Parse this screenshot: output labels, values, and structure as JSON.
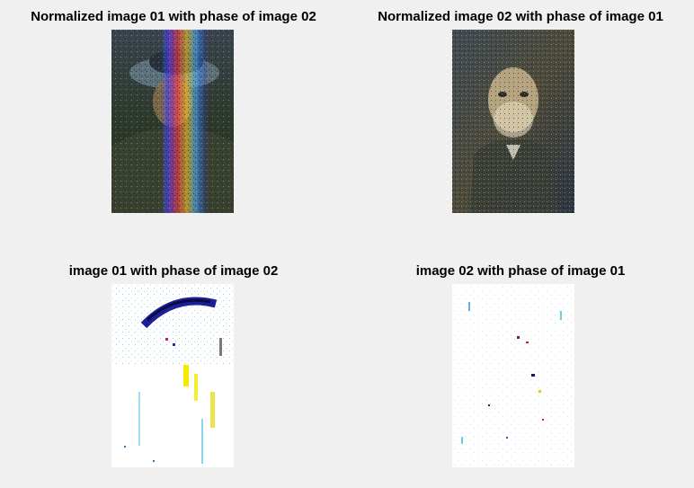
{
  "figure": {
    "panels": [
      {
        "title": "Normalized image 01 with phase of image 02"
      },
      {
        "title": "Normalized image 02 with phase of image 01"
      },
      {
        "title": "image 01 with phase of image 02"
      },
      {
        "title": "image 02 with phase of image 01"
      }
    ]
  }
}
